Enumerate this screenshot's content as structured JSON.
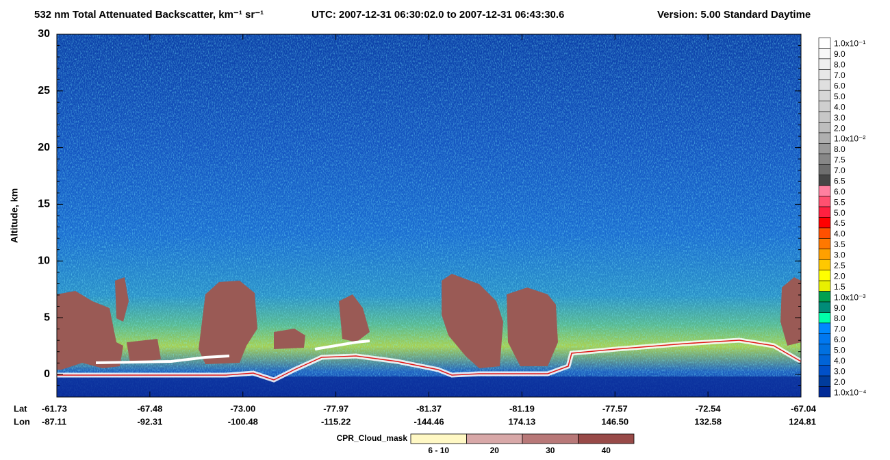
{
  "chart_data": {
    "type": "curtain",
    "title_parts": [
      "532 nm Total Attenuated Backscatter, km⁻¹ sr⁻¹",
      "UTC:  2007-12-31 06:30:02.0  to  2007-12-31 06:43:30.6",
      "Version: 5.00  Standard  Daytime"
    ],
    "ylabel": "Altitude, km",
    "ylim": [
      -2,
      30
    ],
    "yticks": [
      0,
      5,
      10,
      15,
      20,
      25,
      30
    ],
    "x_row_labels": [
      "Lat",
      "Lon"
    ],
    "lat": [
      "-61.73",
      "-67.48",
      "-73.00",
      "-77.97",
      "-81.37",
      "-81.19",
      "-77.57",
      "-72.54",
      "-67.04"
    ],
    "lon": [
      "-87.11",
      "-92.31",
      "-100.48",
      "-115.22",
      "-144.46",
      "174.13",
      "146.50",
      "132.58",
      "124.81"
    ],
    "colorbar_labels": [
      "1.0x10⁻¹",
      "9.0",
      "8.0",
      "7.0",
      "6.0",
      "5.0",
      "4.0",
      "3.0",
      "2.0",
      "1.0x10⁻²",
      "8.0",
      "7.5",
      "7.0",
      "6.5",
      "6.0",
      "5.5",
      "5.0",
      "4.5",
      "4.0",
      "3.5",
      "3.0",
      "2.5",
      "2.0",
      "1.5",
      "1.0x10⁻³",
      "9.0",
      "8.0",
      "7.0",
      "6.0",
      "5.0",
      "4.0",
      "3.0",
      "2.0",
      "1.0x10⁻⁴"
    ],
    "colorbar_colors": [
      "#ffffff",
      "#f7f7f7",
      "#efefef",
      "#e7e7e7",
      "#dfdfdf",
      "#d7d7d7",
      "#cfcfcf",
      "#c7c7c7",
      "#bdbdbd",
      "#afafaf",
      "#9a9a9a",
      "#878787",
      "#6e6e6e",
      "#464646",
      "#ff80a0",
      "#ff5070",
      "#ff2040",
      "#ff0000",
      "#ff5000",
      "#ff7800",
      "#ffa000",
      "#ffc800",
      "#ffff00",
      "#e8f000",
      "#00a050",
      "#008c78",
      "#00ffaa",
      "#0088ff",
      "#0078f0",
      "#0070e0",
      "#0064d8",
      "#0050c8",
      "#003c9c",
      "#002a96"
    ],
    "mask_title": "CPR_Cloud_mask",
    "mask_labels": [
      "6 - 10",
      "20",
      "30",
      "40"
    ],
    "mask_colors": [
      "#fff8c4",
      "#d8a8a8",
      "#b87878",
      "#984a48"
    ]
  }
}
